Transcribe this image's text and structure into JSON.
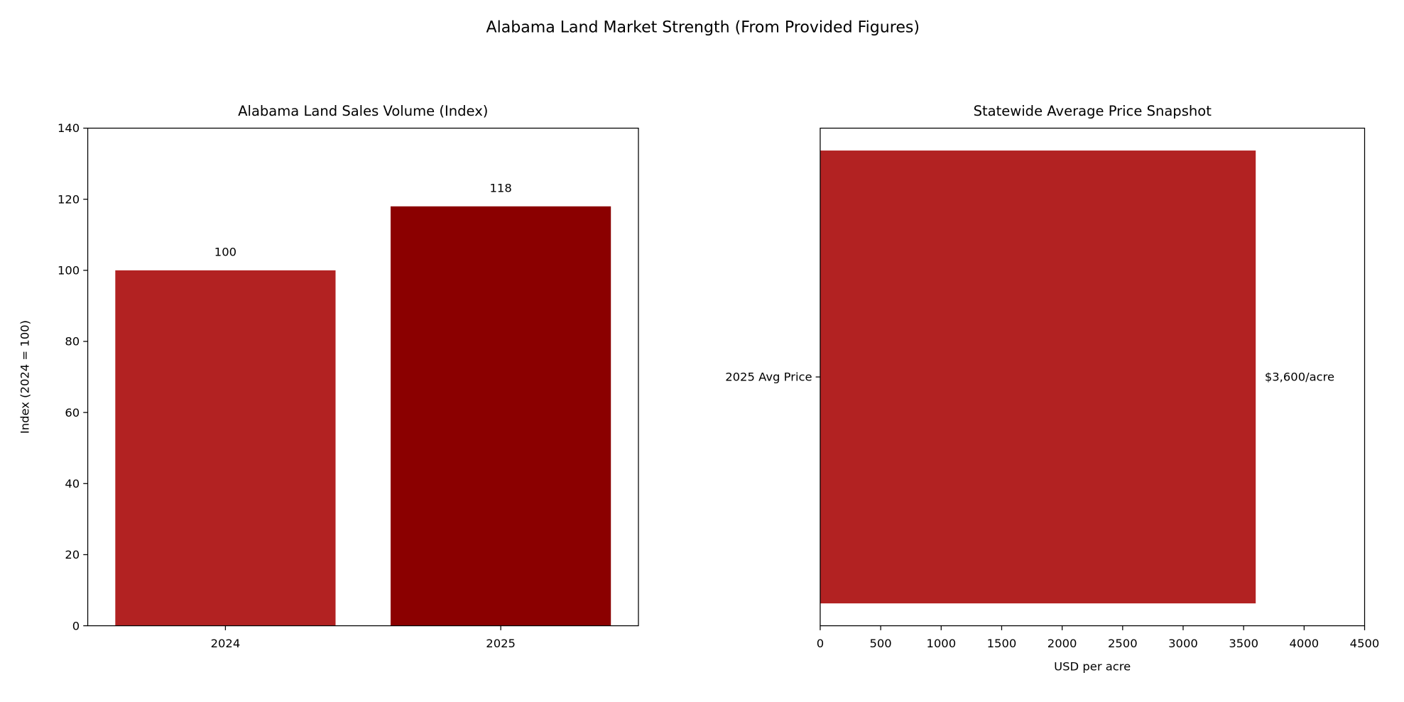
{
  "figure_title": "Alabama Land Market Strength (From Provided Figures)",
  "chart_data": [
    {
      "type": "bar",
      "title": "Alabama Land Sales Volume (Index)",
      "xlabel": "",
      "ylabel": "Index (2024 = 100)",
      "categories": [
        "2024",
        "2025"
      ],
      "values": [
        100,
        118
      ],
      "data_labels": [
        "100",
        "118"
      ],
      "colors": [
        "#b22222",
        "#8b0000"
      ],
      "ylim": [
        0,
        140
      ],
      "yticks": [
        0,
        20,
        40,
        60,
        80,
        100,
        120,
        140
      ],
      "grid": false
    },
    {
      "type": "bar",
      "orientation": "horizontal",
      "title": "Statewide Average Price Snapshot",
      "xlabel": "USD per acre",
      "ylabel": "",
      "categories": [
        "2025 Avg Price"
      ],
      "values": [
        3600
      ],
      "data_labels": [
        "$3,600/acre"
      ],
      "colors": [
        "#b22222"
      ],
      "xlim": [
        0,
        4500
      ],
      "xticks": [
        0,
        500,
        1000,
        1500,
        2000,
        2500,
        3000,
        3500,
        4000,
        4500
      ],
      "grid": false
    }
  ]
}
